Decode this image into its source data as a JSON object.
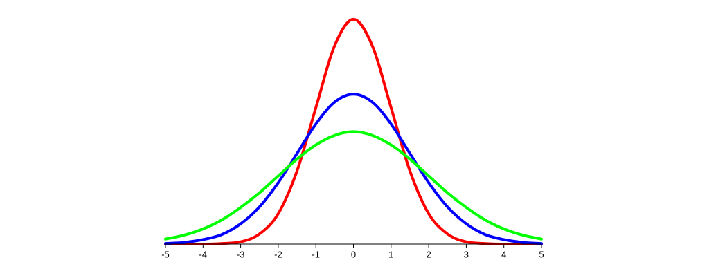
{
  "chart_data": {
    "type": "line",
    "x": [
      -5,
      -4.5,
      -4,
      -3.5,
      -3,
      -2.5,
      -2,
      -1.5,
      -1,
      -0.5,
      0,
      0.5,
      1,
      1.5,
      2,
      2.5,
      3,
      3.5,
      4,
      4.5,
      5
    ],
    "series": [
      {
        "color": "#ff0000",
        "values": [
          0,
          0,
          0,
          0.001,
          0.004,
          0.018,
          0.054,
          0.13,
          0.242,
          0.352,
          0.399,
          0.352,
          0.242,
          0.13,
          0.054,
          0.018,
          0.004,
          0.001,
          0,
          0,
          0
        ]
      },
      {
        "color": "#0000ff",
        "values": [
          0.001,
          0.003,
          0.008,
          0.017,
          0.036,
          0.066,
          0.109,
          0.161,
          0.213,
          0.252,
          0.266,
          0.252,
          0.213,
          0.161,
          0.109,
          0.066,
          0.036,
          0.017,
          0.008,
          0.003,
          0.001
        ]
      },
      {
        "color": "#00ff00",
        "values": [
          0.009,
          0.016,
          0.027,
          0.043,
          0.065,
          0.091,
          0.121,
          0.151,
          0.176,
          0.193,
          0.1995,
          0.193,
          0.176,
          0.151,
          0.121,
          0.091,
          0.065,
          0.043,
          0.027,
          0.016,
          0.009
        ]
      }
    ],
    "xlim": [
      -5,
      5
    ],
    "xticks": [
      -5,
      -4,
      -3,
      -2,
      -1,
      0,
      1,
      2,
      3,
      4,
      5
    ],
    "ylim": [
      0,
      0.4
    ]
  }
}
